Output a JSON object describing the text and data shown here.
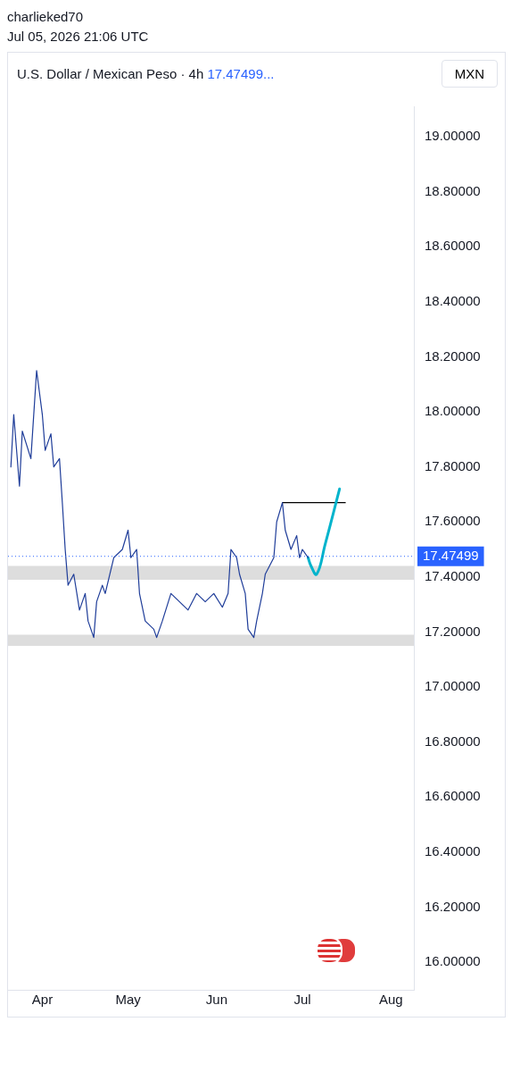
{
  "chart_data": {
    "type": "line",
    "title": "U.S. Dollar / Mexican Peso · 4h",
    "subtitle": "17.47499...",
    "ylabel": "MXN",
    "annotations": [
      "charlieked70",
      "Jul 05, 2026 21:06 UTC"
    ],
    "series": [
      {
        "color": "#1f3d99",
        "x": [
          "2026-03-21",
          "2026-03-22",
          "2026-03-24",
          "2026-03-25",
          "2026-03-28",
          "2026-03-30",
          "2026-04-01",
          "2026-04-02",
          "2026-04-04",
          "2026-04-05",
          "2026-04-07",
          "2026-04-08",
          "2026-04-09",
          "2026-04-10",
          "2026-04-12",
          "2026-04-14",
          "2026-04-16",
          "2026-04-17",
          "2026-04-19",
          "2026-04-20",
          "2026-04-22",
          "2026-04-23",
          "2026-04-26",
          "2026-04-29",
          "2026-05-01",
          "2026-05-02",
          "2026-05-04",
          "2026-05-05",
          "2026-05-07",
          "2026-05-10",
          "2026-05-11",
          "2026-05-13",
          "2026-05-16",
          "2026-05-19",
          "2026-05-22",
          "2026-05-25",
          "2026-05-28",
          "2026-05-31",
          "2026-06-03",
          "2026-06-05",
          "2026-06-06",
          "2026-06-08",
          "2026-06-09",
          "2026-06-11",
          "2026-06-12",
          "2026-06-14",
          "2026-06-15",
          "2026-06-17",
          "2026-06-18",
          "2026-06-21",
          "2026-06-22",
          "2026-06-24",
          "2026-06-25",
          "2026-06-27",
          "2026-06-29",
          "2026-06-30",
          "2026-07-01",
          "2026-07-03"
        ],
        "values": [
          17.8,
          17.99,
          17.73,
          17.93,
          17.83,
          18.15,
          17.99,
          17.86,
          17.92,
          17.8,
          17.83,
          17.67,
          17.5,
          17.37,
          17.41,
          17.28,
          17.34,
          17.24,
          17.18,
          17.31,
          17.37,
          17.34,
          17.47,
          17.5,
          17.57,
          17.47,
          17.5,
          17.34,
          17.24,
          17.21,
          17.18,
          17.24,
          17.34,
          17.31,
          17.28,
          17.34,
          17.31,
          17.34,
          17.29,
          17.34,
          17.5,
          17.47,
          17.41,
          17.34,
          17.21,
          17.18,
          17.24,
          17.34,
          17.41,
          17.47,
          17.6,
          17.67,
          17.57,
          17.5,
          17.55,
          17.47,
          17.5,
          17.47
        ]
      },
      {
        "color": "#00b4cc",
        "x": [
          "2026-07-03",
          "2026-07-04",
          "2026-07-06",
          "2026-07-09",
          "2026-07-14"
        ],
        "values": [
          17.47,
          17.44,
          17.41,
          17.52,
          17.72
        ]
      },
      {
        "color": "#000000",
        "x": [
          "2026-06-24",
          "2026-07-16"
        ],
        "values": [
          17.67,
          17.67
        ]
      }
    ],
    "ref_lines": [
      {
        "axis": "y",
        "value": 17.47499,
        "label": "17.47499",
        "color": "#2962ff",
        "line_style": "dotted"
      }
    ],
    "bands": [
      {
        "axis": "y",
        "from": 17.15,
        "to": 17.19,
        "color": "#dddddd"
      },
      {
        "axis": "y",
        "from": 17.39,
        "to": 17.44,
        "color": "#dddddd"
      }
    ],
    "xlim": [
      "2026-03-20",
      "2026-08-09"
    ],
    "xticks": [
      {
        "value": "2026-04-01",
        "label": "Apr"
      },
      {
        "value": "2026-05-01",
        "label": "May"
      },
      {
        "value": "2026-06-01",
        "label": "Jun"
      },
      {
        "value": "2026-07-01",
        "label": "Jul"
      },
      {
        "value": "2026-08-01",
        "label": "Aug"
      }
    ],
    "ylim": [
      15.9,
      19.11
    ],
    "yticks": [
      {
        "value": 16,
        "label": "16.00000"
      },
      {
        "value": 16.2,
        "label": "16.20000"
      },
      {
        "value": 16.4,
        "label": "16.40000"
      },
      {
        "value": 16.6,
        "label": "16.60000"
      },
      {
        "value": 16.8,
        "label": "16.80000"
      },
      {
        "value": 17,
        "label": "17.00000"
      },
      {
        "value": 17.2,
        "label": "17.20000"
      },
      {
        "value": 17.4,
        "label": "17.40000"
      },
      {
        "value": 17.6,
        "label": "17.60000"
      },
      {
        "value": 17.8,
        "label": "17.80000"
      },
      {
        "value": 18,
        "label": "18.00000"
      },
      {
        "value": 18.2,
        "label": "18.20000"
      },
      {
        "value": 18.4,
        "label": "18.40000"
      },
      {
        "value": 18.6,
        "label": "18.60000"
      },
      {
        "value": 18.8,
        "label": "18.80000"
      },
      {
        "value": 19,
        "label": "19.00000"
      }
    ],
    "grid": false,
    "legend": false,
    "marker": "none",
    "line_style": "solid"
  }
}
